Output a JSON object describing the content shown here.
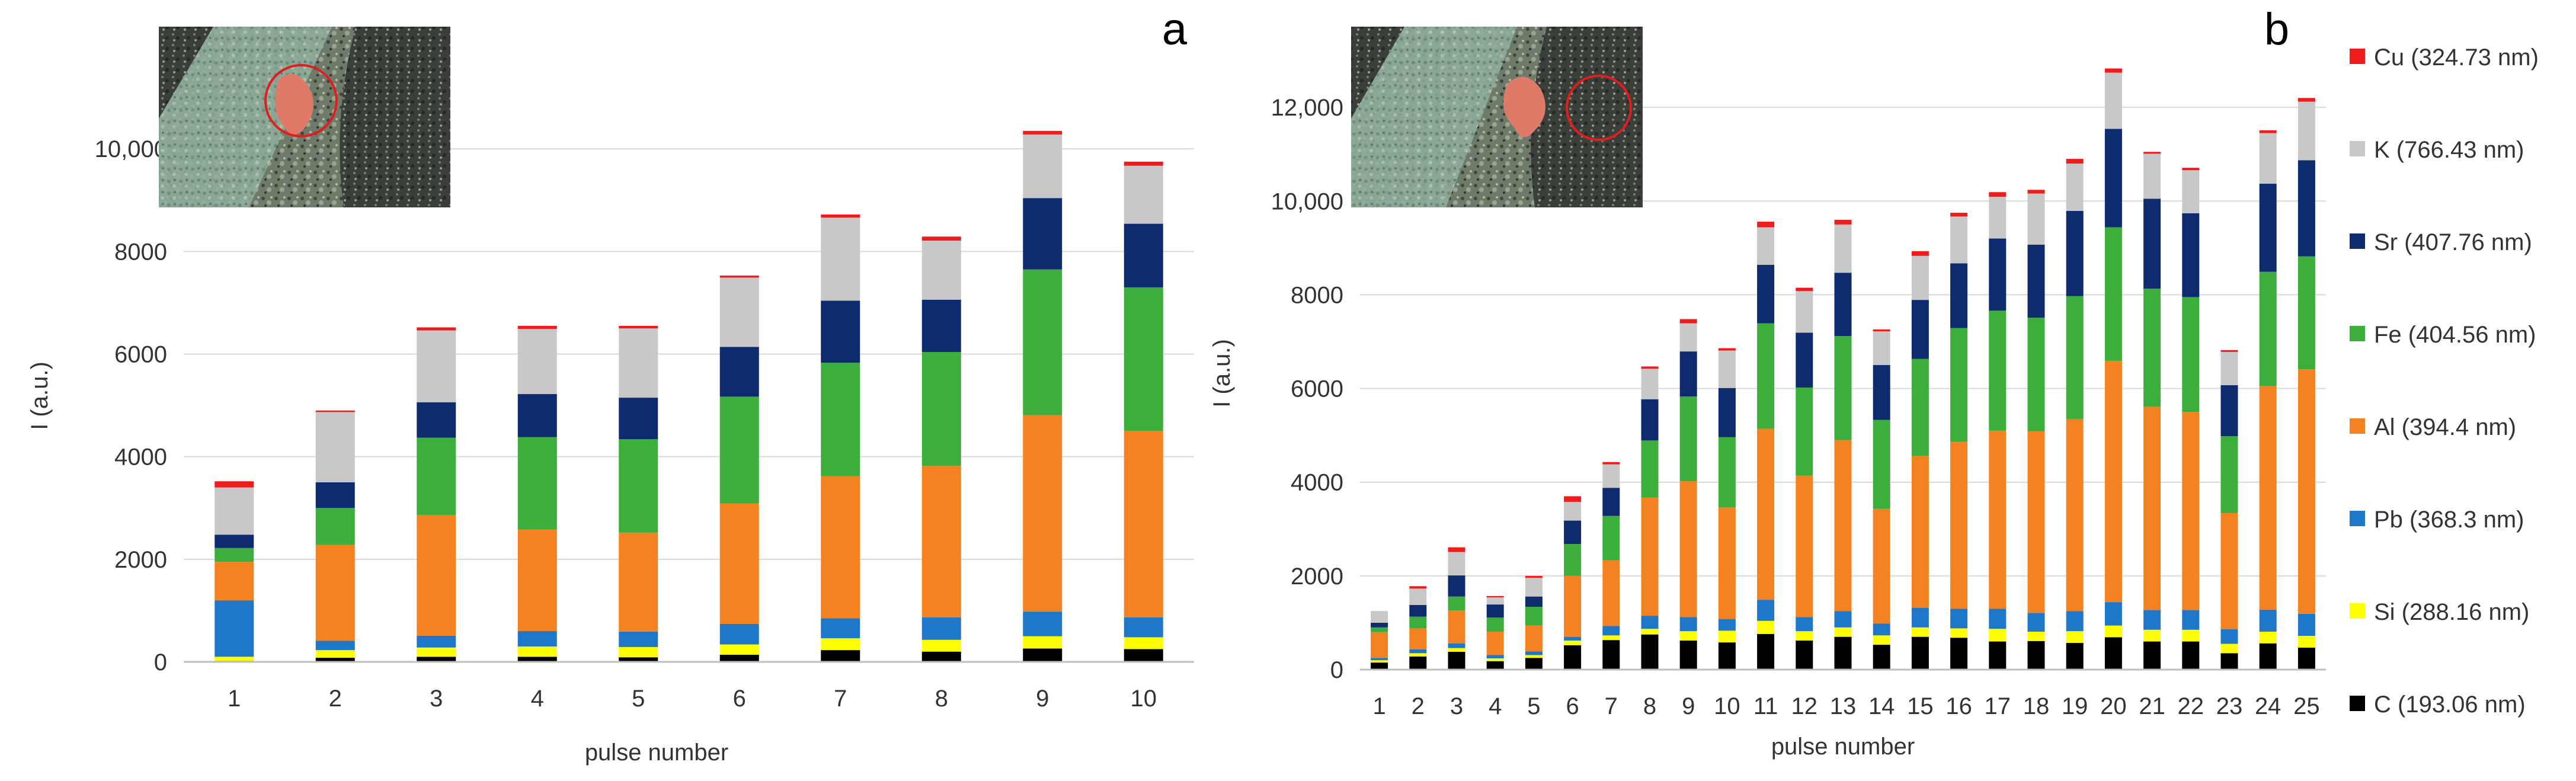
{
  "chart_data": [
    {
      "type": "bar",
      "stacked": true,
      "panel_label": "a",
      "xlabel": "pulse number",
      "ylabel": "I (a.u.)",
      "ylim": [
        0,
        12000
      ],
      "yticks": [
        0,
        2000,
        4000,
        6000,
        8000,
        10000
      ],
      "ytick_labels": [
        "0",
        "2000",
        "4000",
        "6000",
        "8000",
        "10,000"
      ],
      "gridlines": true,
      "inset": "photo of ablation crater (red circle marks analysed spot)",
      "categories": [
        "1",
        "2",
        "3",
        "4",
        "5",
        "6",
        "7",
        "8",
        "9",
        "10"
      ],
      "series": [
        {
          "name": "C  (193.06 nm)",
          "color": "#000000",
          "values": [
            20,
            80,
            100,
            100,
            90,
            140,
            230,
            200,
            260,
            250
          ]
        },
        {
          "name": "Si (288.16 nm)",
          "color": "#ffff00",
          "values": [
            80,
            150,
            180,
            200,
            200,
            200,
            230,
            230,
            240,
            230
          ]
        },
        {
          "name": "Pb (368.3 nm)",
          "color": "#1f77c9",
          "values": [
            1100,
            180,
            230,
            300,
            300,
            400,
            390,
            440,
            480,
            390
          ]
        },
        {
          "name": "Al (394.4 nm)",
          "color": "#f58220",
          "values": [
            750,
            1870,
            2350,
            1980,
            1930,
            2350,
            2770,
            2950,
            3830,
            3630
          ]
        },
        {
          "name": "Fe (404.56 nm)",
          "color": "#3cae3c",
          "values": [
            270,
            720,
            1510,
            1800,
            1820,
            2080,
            2210,
            2220,
            2840,
            2800
          ]
        },
        {
          "name": "Sr (407.76 nm)",
          "color": "#0d2b6e",
          "values": [
            260,
            500,
            690,
            840,
            810,
            970,
            1210,
            1020,
            1390,
            1240
          ]
        },
        {
          "name": "K (766.43 nm)",
          "color": "#c8c8c8",
          "values": [
            920,
            1370,
            1400,
            1270,
            1350,
            1350,
            1620,
            1150,
            1240,
            1130
          ]
        },
        {
          "name": "Cu  (324.73 nm)",
          "color": "#ee1c1c",
          "values": [
            120,
            30,
            60,
            60,
            50,
            40,
            60,
            80,
            70,
            80
          ]
        }
      ]
    },
    {
      "type": "bar",
      "stacked": true,
      "panel_label": "b",
      "xlabel": "pulse number",
      "ylabel": "I (a.u.)",
      "ylim": [
        0,
        14000
      ],
      "yticks": [
        0,
        2000,
        4000,
        6000,
        8000,
        10000,
        12000
      ],
      "ytick_labels": [
        "0",
        "2000",
        "4000",
        "6000",
        "8000",
        "10,000",
        "12,000"
      ],
      "gridlines": true,
      "inset": "photo of ablation crater (red circle marks analysed spot)",
      "categories": [
        "1",
        "2",
        "3",
        "4",
        "5",
        "6",
        "7",
        "8",
        "9",
        "10",
        "11",
        "12",
        "13",
        "14",
        "15",
        "16",
        "17",
        "18",
        "19",
        "20",
        "21",
        "22",
        "23",
        "24",
        "25"
      ],
      "series": [
        {
          "name": "C  (193.06 nm)",
          "color": "#000000",
          "values": [
            150,
            280,
            380,
            180,
            250,
            520,
            630,
            750,
            620,
            580,
            760,
            620,
            700,
            530,
            700,
            680,
            600,
            610,
            570,
            690,
            600,
            600,
            350,
            560,
            470
          ]
        },
        {
          "name": "Si (288.16 nm)",
          "color": "#ffff00",
          "values": [
            50,
            70,
            80,
            60,
            60,
            100,
            100,
            120,
            200,
            250,
            280,
            200,
            200,
            200,
            200,
            200,
            270,
            200,
            250,
            250,
            250,
            250,
            200,
            250,
            250
          ]
        },
        {
          "name": "Pb (368.3 nm)",
          "color": "#1f77c9",
          "values": [
            50,
            80,
            100,
            70,
            80,
            80,
            200,
            280,
            300,
            250,
            450,
            300,
            350,
            250,
            420,
            420,
            430,
            400,
            430,
            500,
            420,
            420,
            310,
            470,
            470
          ]
        },
        {
          "name": "Al (394.4 nm)",
          "color": "#f58220",
          "values": [
            550,
            450,
            700,
            500,
            550,
            1300,
            1400,
            2520,
            2900,
            2380,
            3650,
            3020,
            3650,
            2450,
            3240,
            3560,
            3800,
            3880,
            4100,
            5150,
            4340,
            4230,
            2480,
            4770,
            5220
          ]
        },
        {
          "name": "Fe (404.56 nm)",
          "color": "#3cae3c",
          "values": [
            100,
            250,
            300,
            300,
            400,
            680,
            950,
            1220,
            1810,
            1500,
            2250,
            1880,
            2220,
            1900,
            2070,
            2430,
            2560,
            2420,
            2620,
            2850,
            2520,
            2450,
            1640,
            2440,
            2410
          ]
        },
        {
          "name": "Sr (407.76 nm)",
          "color": "#0d2b6e",
          "values": [
            100,
            250,
            450,
            280,
            220,
            500,
            600,
            880,
            960,
            1050,
            1250,
            1170,
            1350,
            1170,
            1260,
            1380,
            1540,
            1560,
            1820,
            2100,
            1920,
            1790,
            1090,
            1880,
            2050
          ]
        },
        {
          "name": "K (766.43 nm)",
          "color": "#c8c8c8",
          "values": [
            250,
            350,
            500,
            150,
            400,
            400,
            500,
            650,
            600,
            800,
            800,
            890,
            1030,
            720,
            940,
            1000,
            890,
            1090,
            1010,
            1200,
            960,
            920,
            710,
            1080,
            1250
          ]
        },
        {
          "name": "Cu  (324.73 nm)",
          "color": "#ee1c1c",
          "values": [
            0,
            50,
            100,
            30,
            40,
            120,
            50,
            50,
            90,
            50,
            120,
            70,
            100,
            40,
            100,
            80,
            100,
            80,
            100,
            90,
            40,
            50,
            40,
            60,
            80
          ]
        }
      ]
    }
  ],
  "legend": {
    "position": "right",
    "entries": [
      {
        "label": "Cu  (324.73 nm)",
        "color": "#ee1c1c"
      },
      {
        "label": "K (766.43 nm)",
        "color": "#c8c8c8"
      },
      {
        "label": "Sr (407.76 nm)",
        "color": "#0d2b6e"
      },
      {
        "label": "Fe (404.56 nm)",
        "color": "#3cae3c"
      },
      {
        "label": "Al (394.4 nm)",
        "color": "#f58220"
      },
      {
        "label": "Pb (368.3 nm)",
        "color": "#1f77c9"
      },
      {
        "label": "Si (288.16 nm)",
        "color": "#ffff00"
      },
      {
        "label": "C (193.06 nm)",
        "color": "#000000"
      }
    ]
  }
}
